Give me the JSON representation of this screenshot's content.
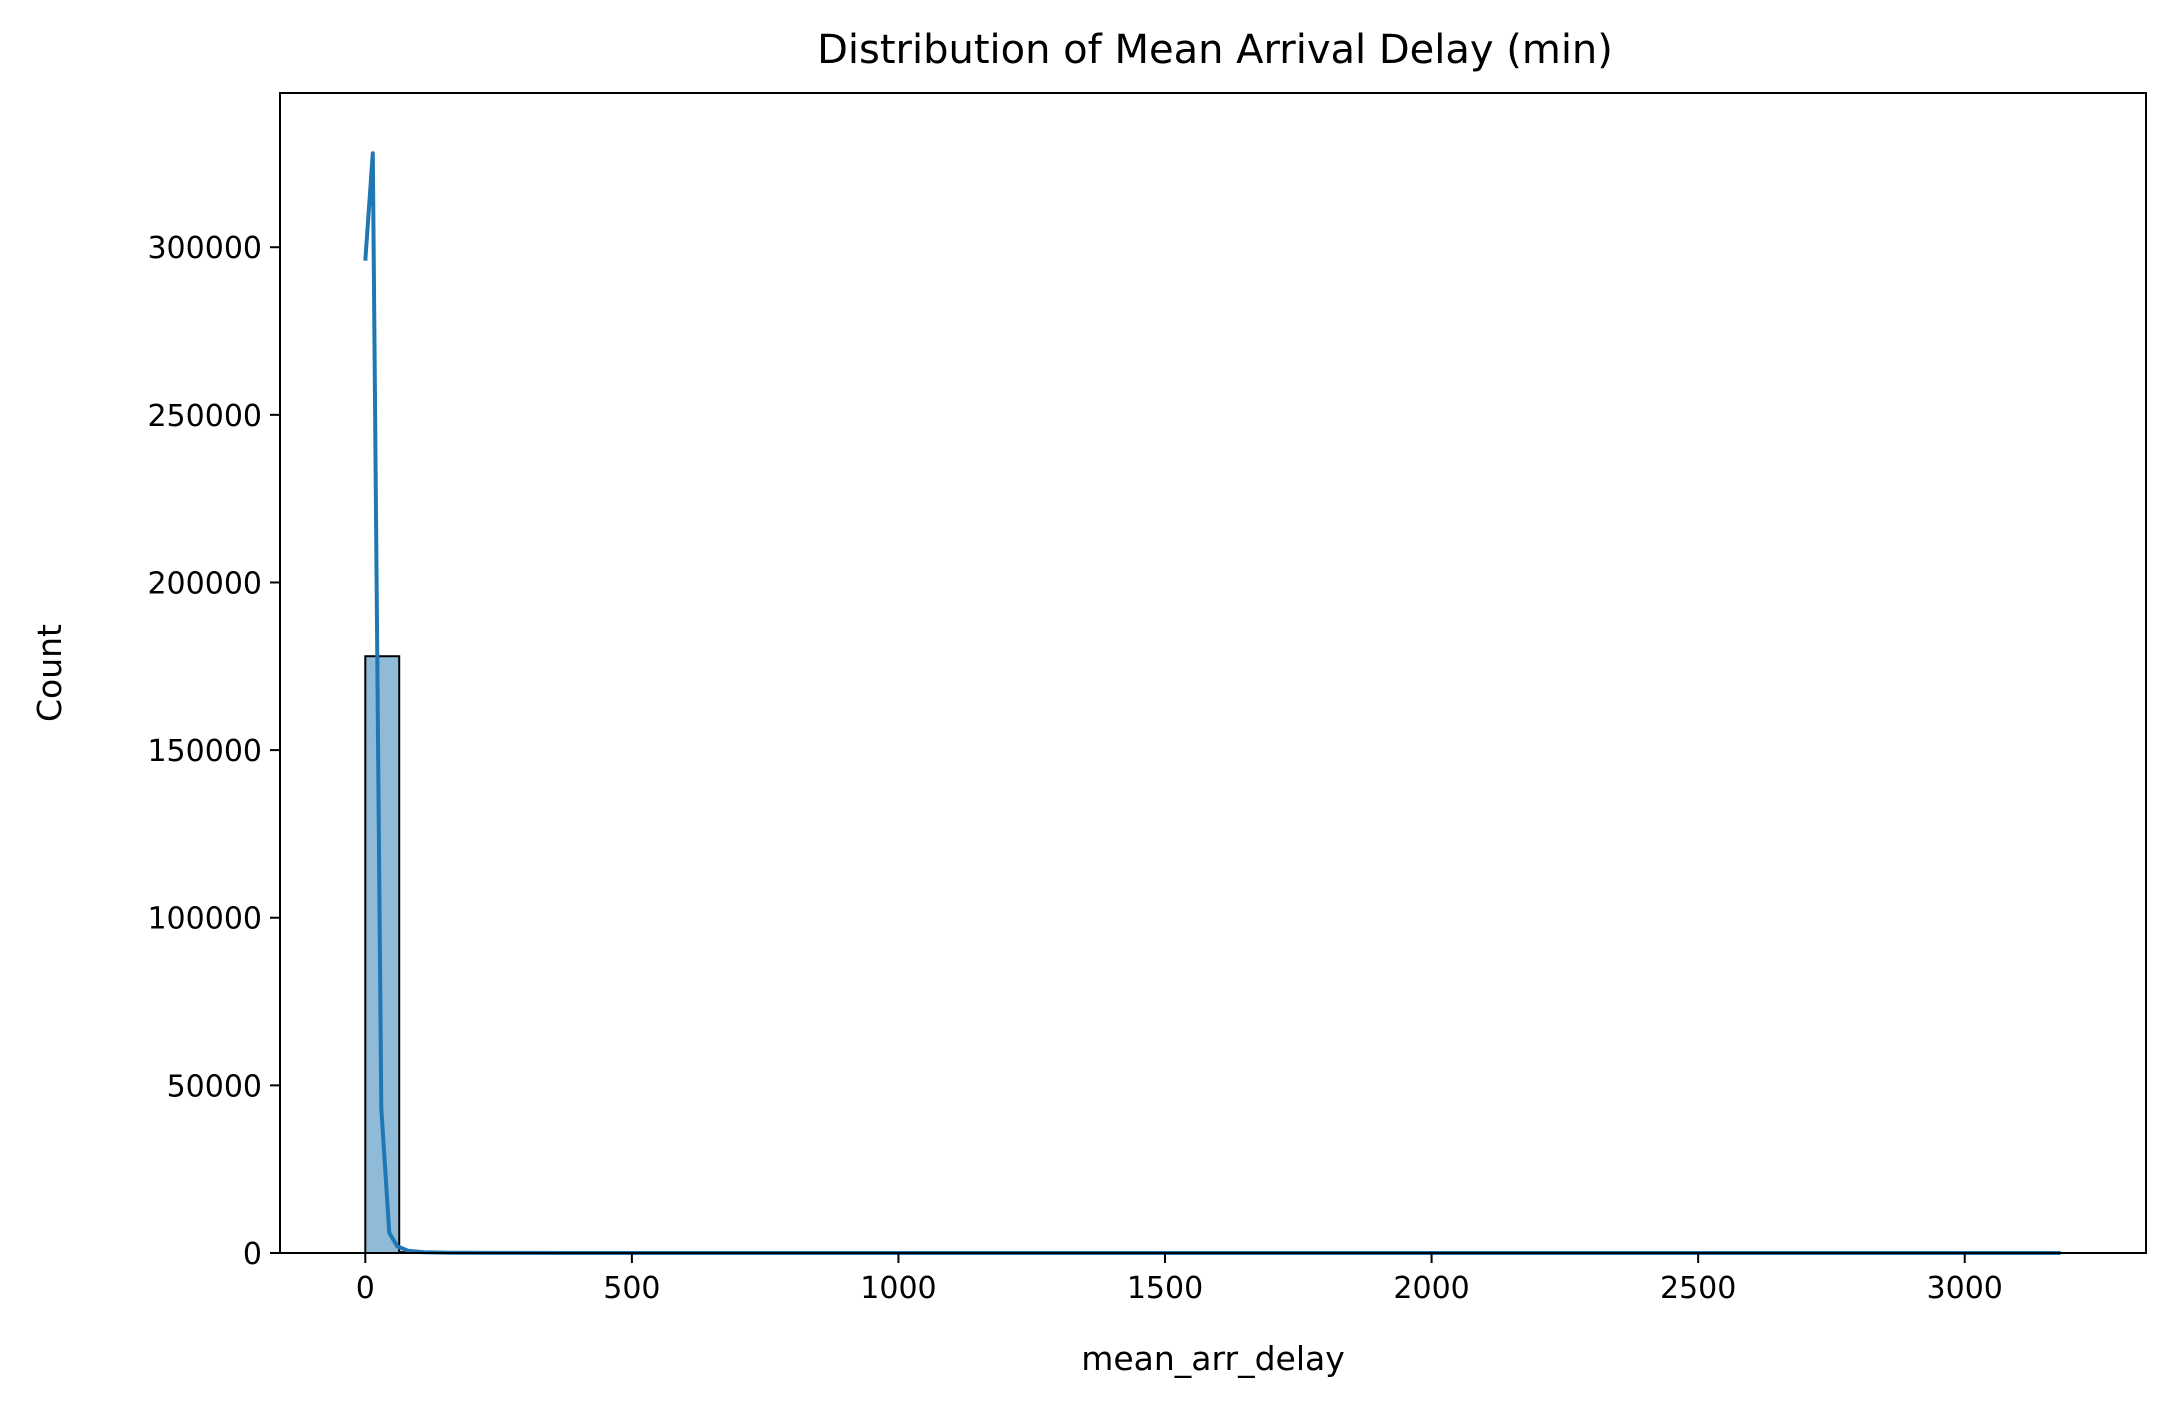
{
  "chart_data": {
    "type": "bar",
    "title": "Distribution of Mean Arrival Delay (min)",
    "xlabel": "mean_arr_delay",
    "ylabel": "Count",
    "xlim": [
      -160,
      3340
    ],
    "ylim": [
      0,
      346000
    ],
    "x_ticks": [
      0,
      500,
      1000,
      1500,
      2000,
      2500,
      3000
    ],
    "x_tick_labels": [
      "0",
      "500",
      "1000",
      "1500",
      "2000",
      "2500",
      "3000"
    ],
    "y_ticks": [
      0,
      50000,
      100000,
      150000,
      200000,
      250000,
      300000
    ],
    "y_tick_labels": [
      "0",
      "50000",
      "100000",
      "150000",
      "200000",
      "250000",
      "300000"
    ],
    "bins": [
      {
        "x0": 0,
        "x1": 63.6,
        "count": 178000
      },
      {
        "x0": 63.6,
        "x1": 127.2,
        "count": 250
      },
      {
        "x0": 127.2,
        "x1": 190.8,
        "count": 40
      },
      {
        "x0": 190.8,
        "x1": 254.4,
        "count": 10
      },
      {
        "x0": 254.4,
        "x1": 318,
        "count": 5
      },
      {
        "x0": 318,
        "x1": 3180,
        "count": 0
      }
    ],
    "series": [
      {
        "kind": "kde",
        "color": "#1f77b4",
        "x": [
          0,
          14,
          30,
          45,
          60,
          80,
          110,
          160,
          250,
          400,
          1000,
          2000,
          3180
        ],
        "y": [
          296000,
          328000,
          43000,
          6000,
          2000,
          700,
          250,
          80,
          20,
          5,
          0,
          0,
          0
        ]
      }
    ],
    "bar_color": "#1f77b4",
    "grid": false,
    "legend": "none"
  }
}
